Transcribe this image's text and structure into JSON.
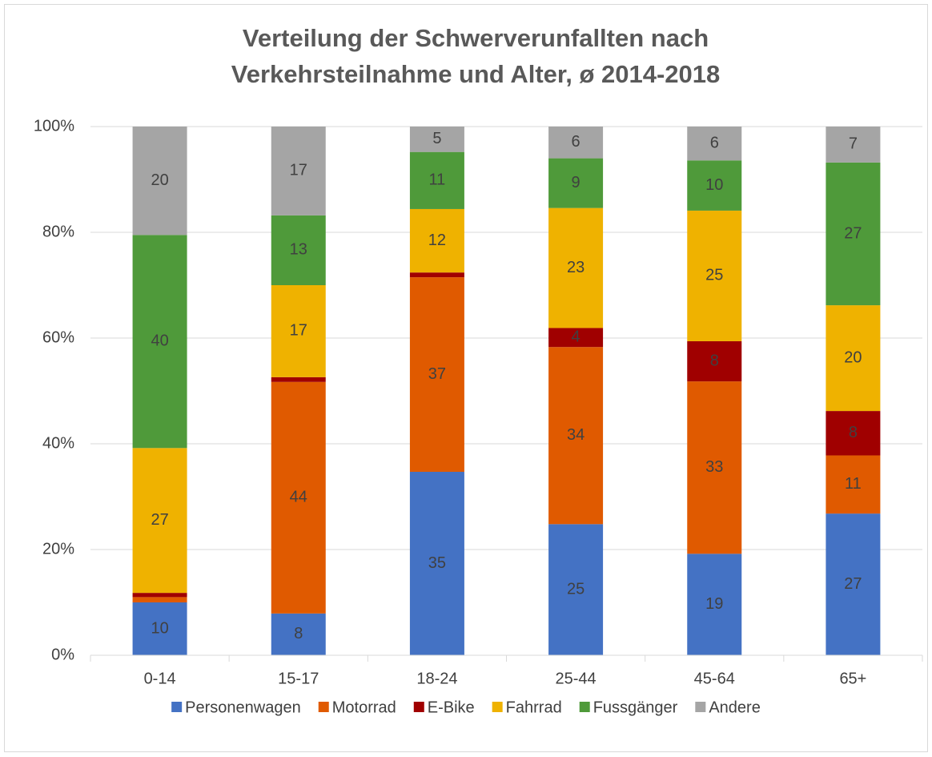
{
  "chart_data": {
    "type": "bar",
    "stacked": true,
    "title": [
      "Verteilung der Schwerverunfallten nach",
      "Verkehrsteilnahme und Alter, ø 2014-2018"
    ],
    "categories": [
      "0-14",
      "15-17",
      "18-24",
      "25-44",
      "45-64",
      "65+"
    ],
    "series": [
      {
        "name": "Personenwagen",
        "color": "#4472c4",
        "values": [
          10.0,
          7.9,
          34.7,
          24.8,
          19.2,
          26.8
        ],
        "value_labels": [
          "10",
          "8",
          "35",
          "25",
          "19",
          "27"
        ]
      },
      {
        "name": "Motorrad",
        "color": "#e05a00",
        "values": [
          1.0,
          43.8,
          36.8,
          33.5,
          32.6,
          11.0
        ],
        "value_labels": [
          null,
          "44",
          "37",
          "34",
          "33",
          "11"
        ]
      },
      {
        "name": "E-Bike",
        "color": "#a00000",
        "values": [
          0.8,
          0.9,
          0.9,
          3.6,
          7.6,
          8.4
        ],
        "value_labels": [
          null,
          null,
          null,
          "4",
          "8",
          "8"
        ]
      },
      {
        "name": "Fahrrad",
        "color": "#efb200",
        "values": [
          27.4,
          17.4,
          12.0,
          22.7,
          24.7,
          20.0
        ],
        "value_labels": [
          "27",
          "17",
          "12",
          "23",
          "25",
          "20"
        ]
      },
      {
        "name": "Fussgänger",
        "color": "#4f9a3a",
        "values": [
          40.3,
          13.2,
          10.8,
          9.4,
          9.5,
          27.0
        ],
        "value_labels": [
          "40",
          "13",
          "11",
          "9",
          "10",
          "27"
        ]
      },
      {
        "name": "Andere",
        "color": "#a5a5a5",
        "values": [
          20.5,
          16.8,
          4.8,
          6.0,
          6.4,
          6.8
        ],
        "value_labels": [
          "20",
          "17",
          "5",
          "6",
          "6",
          "7"
        ]
      }
    ],
    "ylim": [
      0,
      100
    ],
    "yticks": [
      {
        "value": 0,
        "label": "0%"
      },
      {
        "value": 20,
        "label": "20%"
      },
      {
        "value": 40,
        "label": "40%"
      },
      {
        "value": 60,
        "label": "60%"
      },
      {
        "value": 80,
        "label": "80%"
      },
      {
        "value": 100,
        "label": "100%"
      }
    ],
    "grid": true,
    "legend": "bottom"
  }
}
